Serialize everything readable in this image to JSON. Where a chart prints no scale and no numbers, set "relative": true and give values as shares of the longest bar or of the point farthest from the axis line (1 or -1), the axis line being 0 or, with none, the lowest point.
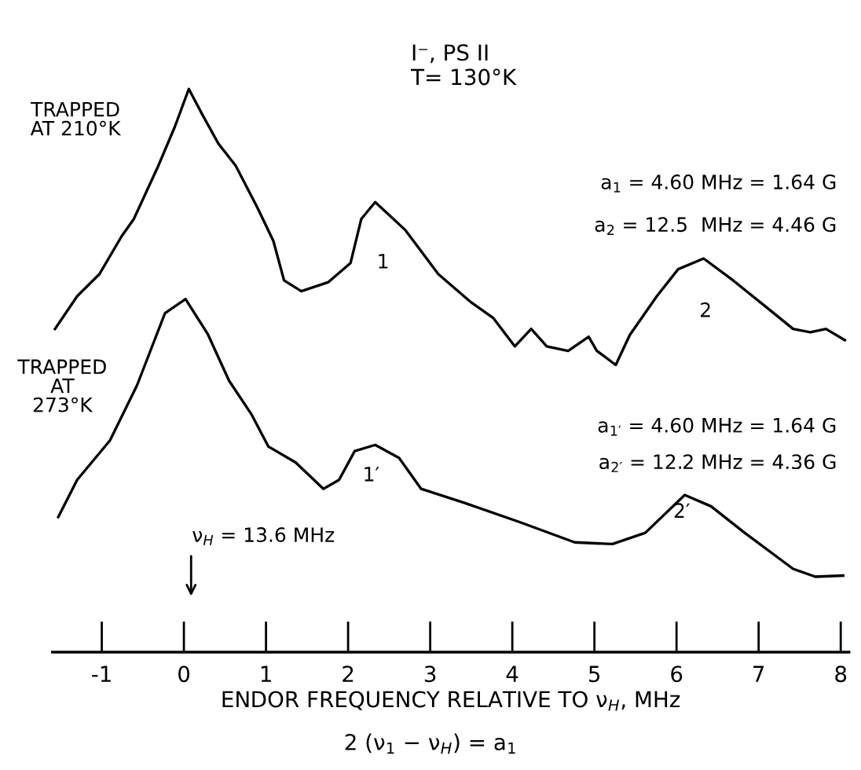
{
  "chart_data": {
    "type": "line",
    "relative": true,
    "title": "I⁻, PS II\nT= 130°K",
    "xlabel": "ENDOR FREQUENCY RELATIVE TO ν$_{H}$, MHz",
    "xlim": [
      -1.6,
      8.1
    ],
    "xticks": [
      -1,
      0,
      1,
      2,
      3,
      4,
      5,
      6,
      7,
      8
    ],
    "grid": false,
    "legend": false,
    "marker": "none",
    "line_style": "solid",
    "series": [
      {
        "name": "TRAPPED\nAT 210°K",
        "color": "#000000",
        "x": [
          -1.57,
          -1.3,
          -1.03,
          -0.76,
          -0.61,
          -0.31,
          -0.11,
          0.06,
          0.23,
          0.42,
          0.63,
          0.9,
          1.09,
          1.22,
          1.43,
          1.76,
          2.03,
          2.16,
          2.33,
          2.7,
          3.1,
          3.5,
          3.77,
          4.03,
          4.23,
          4.42,
          4.68,
          4.93,
          5.03,
          5.26,
          5.43,
          5.76,
          6.02,
          6.33,
          6.69,
          7.09,
          7.42,
          7.63,
          7.82,
          8.05
        ],
        "values": [
          0.574,
          0.632,
          0.671,
          0.738,
          0.769,
          0.864,
          0.933,
          1.0,
          0.953,
          0.903,
          0.864,
          0.788,
          0.73,
          0.66,
          0.641,
          0.657,
          0.691,
          0.769,
          0.799,
          0.749,
          0.671,
          0.621,
          0.593,
          0.543,
          0.574,
          0.543,
          0.535,
          0.56,
          0.535,
          0.51,
          0.563,
          0.632,
          0.68,
          0.699,
          0.66,
          0.613,
          0.574,
          0.568,
          0.574,
          0.554
        ]
      },
      {
        "name": "TRAPPED\nAT\n273°K",
        "color": "#000000",
        "x": [
          -1.53,
          -1.3,
          -0.9,
          -0.57,
          -0.23,
          0.02,
          0.29,
          0.55,
          0.82,
          1.03,
          1.36,
          1.7,
          1.89,
          2.08,
          2.33,
          2.62,
          2.89,
          3.42,
          4.09,
          4.76,
          5.22,
          5.62,
          6.1,
          6.42,
          6.83,
          7.42,
          7.69,
          8.03
        ],
        "values": [
          0.24,
          0.306,
          0.376,
          0.474,
          0.602,
          0.627,
          0.565,
          0.482,
          0.423,
          0.365,
          0.337,
          0.29,
          0.306,
          0.357,
          0.368,
          0.345,
          0.29,
          0.265,
          0.231,
          0.195,
          0.192,
          0.212,
          0.279,
          0.259,
          0.212,
          0.148,
          0.134,
          0.136
        ]
      }
    ],
    "annotations": [
      "1",
      "2",
      "1′",
      "2′",
      "ν$_{H}$ = 13.6 MHz",
      "a$_{1}$ = 4.60 MHz = 1.64 G",
      "a$_{2}$ = 12.5  MHz = 4.46 G",
      "a$_{1′}$ = 4.60 MHz = 1.64 G",
      "a$_{2′}$ = 12.2 MHz = 4.36 G",
      "2 (ν$_{1}$ − ν$_{H}$) = a$_{1}$"
    ]
  }
}
